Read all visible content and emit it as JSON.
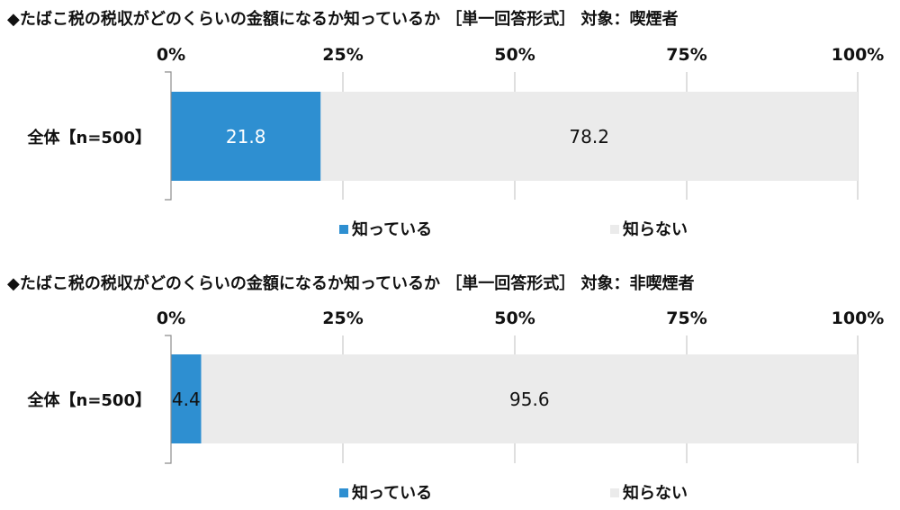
{
  "colors": {
    "series1": "#2e8fd1",
    "series2": "#ebebeb",
    "grid": "#bfbfbf",
    "axis": "#8c8c8c",
    "text": "#111111",
    "label_on_dark": "#ffffff"
  },
  "chart_data": [
    {
      "type": "bar",
      "orientation": "horizontal",
      "stacked": true,
      "title": "◆たばこ税の税収がどのくらいの金額になるか知っているか ［単一回答形式］ 対象：喫煙者",
      "categories": [
        "全体【n=500】"
      ],
      "series": [
        {
          "name": "知っている",
          "values": [
            21.8
          ]
        },
        {
          "name": "知らない",
          "values": [
            78.2
          ]
        }
      ],
      "x_ticks": [
        "0%",
        "25%",
        "50%",
        "75%",
        "100%"
      ],
      "xlim": [
        0,
        100
      ],
      "grid": true,
      "legend_position": "bottom"
    },
    {
      "type": "bar",
      "orientation": "horizontal",
      "stacked": true,
      "title": "◆たばこ税の税収がどのくらいの金額になるか知っているか ［単一回答形式］ 対象：非喫煙者",
      "categories": [
        "全体【n=500】"
      ],
      "series": [
        {
          "name": "知っている",
          "values": [
            4.4
          ]
        },
        {
          "name": "知らない",
          "values": [
            95.6
          ]
        }
      ],
      "x_ticks": [
        "0%",
        "25%",
        "50%",
        "75%",
        "100%"
      ],
      "xlim": [
        0,
        100
      ],
      "grid": true,
      "legend_position": "bottom"
    }
  ]
}
